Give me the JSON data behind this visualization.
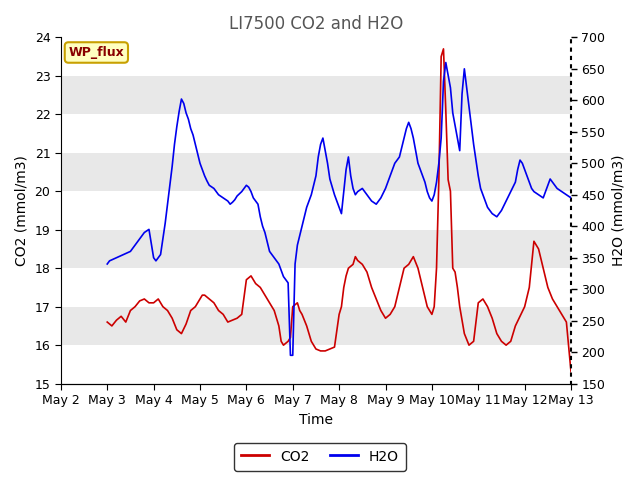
{
  "title": "LI7500 CO2 and H2O",
  "xlabel": "Time",
  "ylabel_left": "CO2 (mmol/m3)",
  "ylabel_right": "H2O (mmol/m3)",
  "ylim_left": [
    15.0,
    24.0
  ],
  "ylim_right": [
    150,
    700
  ],
  "yticks_left": [
    15.0,
    16.0,
    17.0,
    18.0,
    19.0,
    20.0,
    21.0,
    22.0,
    23.0,
    24.0
  ],
  "yticks_right": [
    150,
    200,
    250,
    300,
    350,
    400,
    450,
    500,
    550,
    600,
    650,
    700
  ],
  "co2_color": "#cc0000",
  "h2o_color": "#0000ee",
  "fig_bg_color": "#ffffff",
  "band_color_light": "#ffffff",
  "band_color_dark": "#e8e8e8",
  "annotation_text": "WP_flux",
  "annotation_color": "#880000",
  "annotation_bg": "#ffffc0",
  "annotation_border": "#c8a000",
  "title_fontsize": 12,
  "axis_fontsize": 10,
  "tick_fontsize": 9,
  "legend_fontsize": 10,
  "co2_data": [
    [
      2.0,
      16.6
    ],
    [
      2.1,
      16.5
    ],
    [
      2.2,
      16.65
    ],
    [
      2.3,
      16.75
    ],
    [
      2.4,
      16.6
    ],
    [
      2.5,
      16.9
    ],
    [
      2.6,
      17.0
    ],
    [
      2.7,
      17.15
    ],
    [
      2.8,
      17.2
    ],
    [
      2.9,
      17.1
    ],
    [
      3.0,
      17.1
    ],
    [
      3.05,
      17.15
    ],
    [
      3.1,
      17.2
    ],
    [
      3.15,
      17.1
    ],
    [
      3.2,
      17.0
    ],
    [
      3.3,
      16.9
    ],
    [
      3.4,
      16.7
    ],
    [
      3.5,
      16.4
    ],
    [
      3.6,
      16.3
    ],
    [
      3.7,
      16.55
    ],
    [
      3.8,
      16.9
    ],
    [
      3.9,
      17.0
    ],
    [
      4.0,
      17.2
    ],
    [
      4.05,
      17.3
    ],
    [
      4.1,
      17.3
    ],
    [
      4.15,
      17.25
    ],
    [
      4.2,
      17.2
    ],
    [
      4.3,
      17.1
    ],
    [
      4.4,
      16.9
    ],
    [
      4.5,
      16.8
    ],
    [
      4.6,
      16.6
    ],
    [
      4.7,
      16.65
    ],
    [
      4.8,
      16.7
    ],
    [
      4.9,
      16.8
    ],
    [
      5.0,
      17.7
    ],
    [
      5.05,
      17.75
    ],
    [
      5.1,
      17.8
    ],
    [
      5.15,
      17.7
    ],
    [
      5.2,
      17.6
    ],
    [
      5.3,
      17.5
    ],
    [
      5.4,
      17.3
    ],
    [
      5.5,
      17.1
    ],
    [
      5.6,
      16.9
    ],
    [
      5.65,
      16.7
    ],
    [
      5.7,
      16.5
    ],
    [
      5.75,
      16.1
    ],
    [
      5.8,
      16.0
    ],
    [
      5.85,
      16.05
    ],
    [
      5.9,
      16.1
    ],
    [
      5.95,
      16.2
    ],
    [
      6.0,
      17.0
    ],
    [
      6.05,
      17.05
    ],
    [
      6.1,
      17.1
    ],
    [
      6.15,
      16.9
    ],
    [
      6.2,
      16.8
    ],
    [
      6.3,
      16.5
    ],
    [
      6.4,
      16.1
    ],
    [
      6.5,
      15.9
    ],
    [
      6.6,
      15.85
    ],
    [
      6.7,
      15.85
    ],
    [
      6.8,
      15.9
    ],
    [
      6.9,
      15.95
    ],
    [
      7.0,
      16.8
    ],
    [
      7.05,
      17.0
    ],
    [
      7.1,
      17.5
    ],
    [
      7.15,
      17.8
    ],
    [
      7.2,
      18.0
    ],
    [
      7.3,
      18.1
    ],
    [
      7.35,
      18.3
    ],
    [
      7.4,
      18.2
    ],
    [
      7.5,
      18.1
    ],
    [
      7.6,
      17.9
    ],
    [
      7.7,
      17.5
    ],
    [
      7.8,
      17.2
    ],
    [
      7.9,
      16.9
    ],
    [
      8.0,
      16.7
    ],
    [
      8.1,
      16.8
    ],
    [
      8.2,
      17.0
    ],
    [
      8.3,
      17.5
    ],
    [
      8.4,
      18.0
    ],
    [
      8.5,
      18.1
    ],
    [
      8.6,
      18.3
    ],
    [
      8.7,
      18.0
    ],
    [
      8.8,
      17.5
    ],
    [
      8.9,
      17.0
    ],
    [
      9.0,
      16.8
    ],
    [
      9.05,
      17.0
    ],
    [
      9.1,
      18.0
    ],
    [
      9.15,
      20.3
    ],
    [
      9.2,
      23.5
    ],
    [
      9.25,
      23.7
    ],
    [
      9.3,
      22.1
    ],
    [
      9.35,
      20.3
    ],
    [
      9.4,
      20.0
    ],
    [
      9.45,
      18.0
    ],
    [
      9.5,
      17.9
    ],
    [
      9.55,
      17.5
    ],
    [
      9.6,
      17.0
    ],
    [
      9.7,
      16.3
    ],
    [
      9.8,
      16.0
    ],
    [
      9.9,
      16.1
    ],
    [
      10.0,
      17.1
    ],
    [
      10.1,
      17.2
    ],
    [
      10.2,
      17.0
    ],
    [
      10.3,
      16.7
    ],
    [
      10.4,
      16.3
    ],
    [
      10.5,
      16.1
    ],
    [
      10.6,
      16.0
    ],
    [
      10.7,
      16.1
    ],
    [
      10.8,
      16.5
    ],
    [
      11.0,
      17.0
    ],
    [
      11.1,
      17.5
    ],
    [
      11.2,
      18.7
    ],
    [
      11.3,
      18.5
    ],
    [
      11.4,
      18.0
    ],
    [
      11.5,
      17.5
    ],
    [
      11.6,
      17.2
    ],
    [
      11.7,
      17.0
    ],
    [
      11.8,
      16.8
    ],
    [
      11.9,
      16.6
    ],
    [
      12.0,
      15.3
    ],
    [
      12.1,
      15.5
    ],
    [
      12.2,
      16.0
    ],
    [
      12.3,
      16.5
    ],
    [
      12.4,
      17.0
    ],
    [
      12.5,
      17.2
    ],
    [
      12.6,
      17.1
    ],
    [
      12.7,
      17.2
    ],
    [
      12.8,
      17.15
    ],
    [
      12.9,
      17.1
    ],
    [
      13.0,
      17.1
    ]
  ],
  "h2o_data": [
    [
      2.0,
      340
    ],
    [
      2.05,
      345
    ],
    [
      2.5,
      360
    ],
    [
      2.6,
      370
    ],
    [
      2.7,
      380
    ],
    [
      2.8,
      390
    ],
    [
      2.9,
      395
    ],
    [
      3.0,
      350
    ],
    [
      3.05,
      345
    ],
    [
      3.1,
      350
    ],
    [
      3.15,
      355
    ],
    [
      3.2,
      380
    ],
    [
      3.25,
      405
    ],
    [
      3.3,
      435
    ],
    [
      3.35,
      465
    ],
    [
      3.4,
      495
    ],
    [
      3.45,
      530
    ],
    [
      3.5,
      558
    ],
    [
      3.55,
      582
    ],
    [
      3.6,
      602
    ],
    [
      3.65,
      595
    ],
    [
      3.7,
      580
    ],
    [
      3.75,
      570
    ],
    [
      3.8,
      555
    ],
    [
      3.85,
      545
    ],
    [
      3.9,
      530
    ],
    [
      3.95,
      515
    ],
    [
      4.0,
      500
    ],
    [
      4.05,
      490
    ],
    [
      4.1,
      480
    ],
    [
      4.15,
      472
    ],
    [
      4.2,
      465
    ],
    [
      4.3,
      460
    ],
    [
      4.4,
      450
    ],
    [
      4.5,
      445
    ],
    [
      4.6,
      440
    ],
    [
      4.65,
      435
    ],
    [
      4.7,
      438
    ],
    [
      4.75,
      442
    ],
    [
      4.8,
      448
    ],
    [
      4.9,
      455
    ],
    [
      5.0,
      465
    ],
    [
      5.05,
      462
    ],
    [
      5.1,
      455
    ],
    [
      5.15,
      445
    ],
    [
      5.2,
      440
    ],
    [
      5.25,
      435
    ],
    [
      5.3,
      415
    ],
    [
      5.35,
      400
    ],
    [
      5.4,
      390
    ],
    [
      5.5,
      360
    ],
    [
      5.6,
      350
    ],
    [
      5.7,
      340
    ],
    [
      5.75,
      330
    ],
    [
      5.8,
      320
    ],
    [
      5.85,
      315
    ],
    [
      5.9,
      310
    ],
    [
      5.95,
      195
    ],
    [
      6.0,
      195
    ],
    [
      6.05,
      340
    ],
    [
      6.1,
      370
    ],
    [
      6.15,
      385
    ],
    [
      6.2,
      400
    ],
    [
      6.3,
      430
    ],
    [
      6.4,
      450
    ],
    [
      6.5,
      480
    ],
    [
      6.55,
      510
    ],
    [
      6.6,
      530
    ],
    [
      6.65,
      540
    ],
    [
      6.7,
      520
    ],
    [
      6.75,
      500
    ],
    [
      6.8,
      475
    ],
    [
      6.9,
      450
    ],
    [
      7.0,
      430
    ],
    [
      7.05,
      420
    ],
    [
      7.1,
      455
    ],
    [
      7.15,
      490
    ],
    [
      7.2,
      510
    ],
    [
      7.25,
      480
    ],
    [
      7.3,
      460
    ],
    [
      7.35,
      450
    ],
    [
      7.4,
      455
    ],
    [
      7.5,
      460
    ],
    [
      7.55,
      455
    ],
    [
      7.6,
      450
    ],
    [
      7.65,
      445
    ],
    [
      7.7,
      440
    ],
    [
      7.8,
      435
    ],
    [
      7.85,
      440
    ],
    [
      7.9,
      445
    ],
    [
      8.0,
      460
    ],
    [
      8.05,
      470
    ],
    [
      8.1,
      480
    ],
    [
      8.15,
      490
    ],
    [
      8.2,
      500
    ],
    [
      8.3,
      510
    ],
    [
      8.4,
      540
    ],
    [
      8.45,
      555
    ],
    [
      8.5,
      565
    ],
    [
      8.55,
      555
    ],
    [
      8.6,
      540
    ],
    [
      8.65,
      520
    ],
    [
      8.7,
      500
    ],
    [
      8.8,
      480
    ],
    [
      8.85,
      470
    ],
    [
      8.9,
      455
    ],
    [
      8.95,
      445
    ],
    [
      9.0,
      440
    ],
    [
      9.05,
      450
    ],
    [
      9.1,
      470
    ],
    [
      9.15,
      500
    ],
    [
      9.2,
      540
    ],
    [
      9.25,
      630
    ],
    [
      9.3,
      660
    ],
    [
      9.35,
      640
    ],
    [
      9.4,
      620
    ],
    [
      9.45,
      580
    ],
    [
      9.5,
      560
    ],
    [
      9.55,
      540
    ],
    [
      9.6,
      520
    ],
    [
      9.65,
      610
    ],
    [
      9.7,
      650
    ],
    [
      9.75,
      620
    ],
    [
      9.8,
      590
    ],
    [
      9.85,
      560
    ],
    [
      9.9,
      530
    ],
    [
      9.95,
      505
    ],
    [
      10.0,
      480
    ],
    [
      10.05,
      460
    ],
    [
      10.1,
      450
    ],
    [
      10.15,
      440
    ],
    [
      10.2,
      430
    ],
    [
      10.3,
      420
    ],
    [
      10.4,
      415
    ],
    [
      10.5,
      425
    ],
    [
      10.6,
      440
    ],
    [
      10.7,
      455
    ],
    [
      10.8,
      470
    ],
    [
      10.85,
      490
    ],
    [
      10.9,
      505
    ],
    [
      10.95,
      500
    ],
    [
      11.0,
      490
    ],
    [
      11.05,
      480
    ],
    [
      11.1,
      470
    ],
    [
      11.15,
      460
    ],
    [
      11.2,
      455
    ],
    [
      11.3,
      450
    ],
    [
      11.4,
      445
    ],
    [
      11.45,
      455
    ],
    [
      11.5,
      465
    ],
    [
      11.55,
      475
    ],
    [
      11.6,
      470
    ],
    [
      11.7,
      460
    ],
    [
      11.8,
      455
    ],
    [
      11.9,
      450
    ],
    [
      12.0,
      445
    ],
    [
      12.05,
      455
    ],
    [
      12.1,
      475
    ],
    [
      12.2,
      510
    ],
    [
      12.3,
      540
    ],
    [
      12.4,
      565
    ],
    [
      12.45,
      580
    ],
    [
      12.5,
      575
    ],
    [
      12.6,
      570
    ],
    [
      12.7,
      555
    ],
    [
      12.8,
      545
    ],
    [
      12.9,
      535
    ],
    [
      13.0,
      445
    ]
  ]
}
